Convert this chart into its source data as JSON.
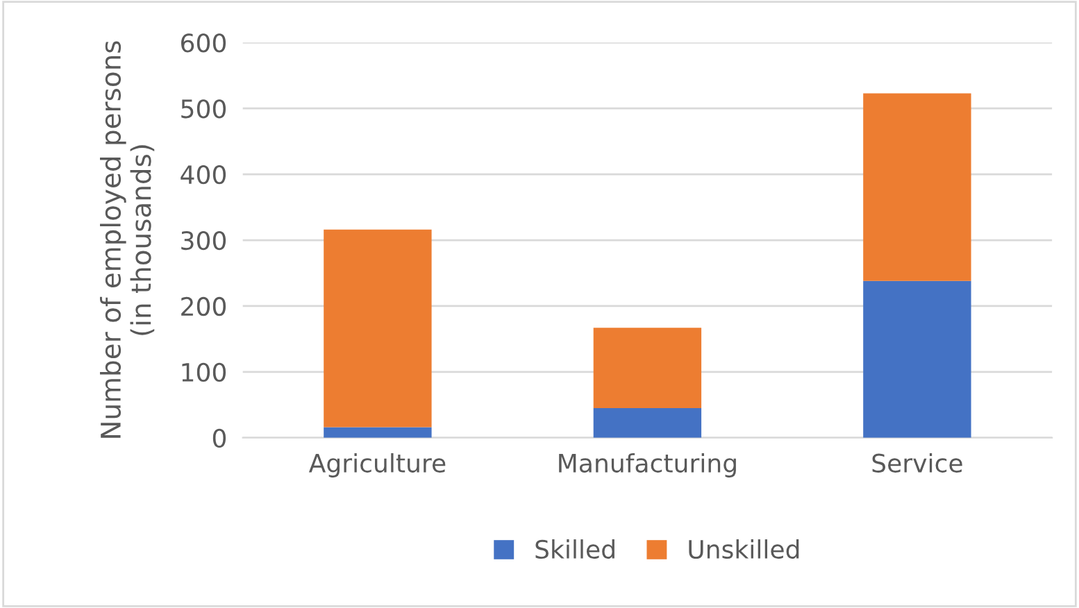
{
  "chart_data": {
    "type": "bar",
    "stacked": true,
    "ylabel": "Number of employed persons\n(in thousands)",
    "categories": [
      "Agriculture",
      "Manufacturing",
      "Service"
    ],
    "series": [
      {
        "name": "Skilled",
        "color": "#4472c4",
        "values": [
          16,
          45,
          238
        ]
      },
      {
        "name": "Unskilled",
        "color": "#ed7d31",
        "values": [
          300,
          122,
          285
        ]
      }
    ],
    "ylim": [
      0,
      600
    ],
    "yticks": [
      0,
      100,
      200,
      300,
      400,
      500,
      600
    ],
    "grid": "y",
    "legend": "bottom"
  }
}
